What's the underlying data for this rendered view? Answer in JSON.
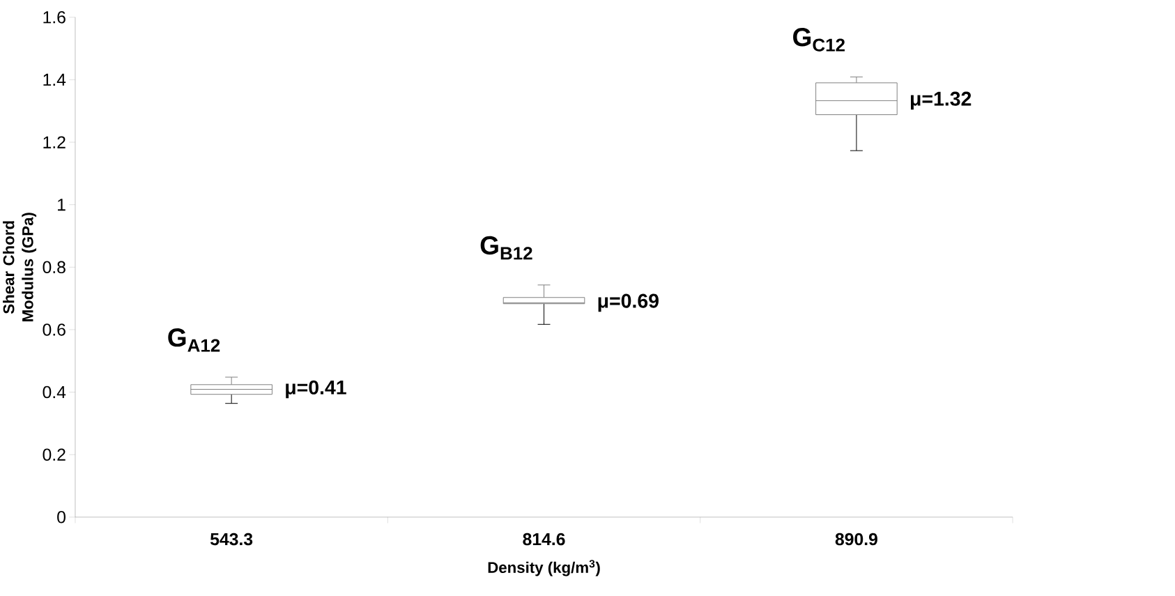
{
  "chart_data": {
    "type": "box",
    "xlabel": "Density (kg/m$^{3}$)",
    "ylabel": "Shear Chord Modulus (GPa)",
    "categories": [
      "543.3",
      "814.6",
      "890.9"
    ],
    "boxes": [
      {
        "low": 0.364,
        "q1": 0.393,
        "median": 0.409,
        "q3": 0.424,
        "high": 0.448
      },
      {
        "low": 0.617,
        "q1": 0.683,
        "median": 0.686,
        "q3": 0.703,
        "high": 0.743
      },
      {
        "low": 1.173,
        "q1": 1.288,
        "median": 1.333,
        "q3": 1.39,
        "high": 1.409
      }
    ],
    "color": "#808080",
    "ylim": [
      0,
      1.6
    ],
    "yticks": [
      0,
      0.2,
      0.4,
      0.6,
      0.8,
      1,
      1.2,
      1.4,
      1.6
    ],
    "grid": false,
    "annotations": [
      "G$_{A12}$",
      "G$_{B12}$",
      "G$_{C12}$",
      "μ=0.41",
      "μ=0.69",
      "μ=1.32"
    ]
  }
}
